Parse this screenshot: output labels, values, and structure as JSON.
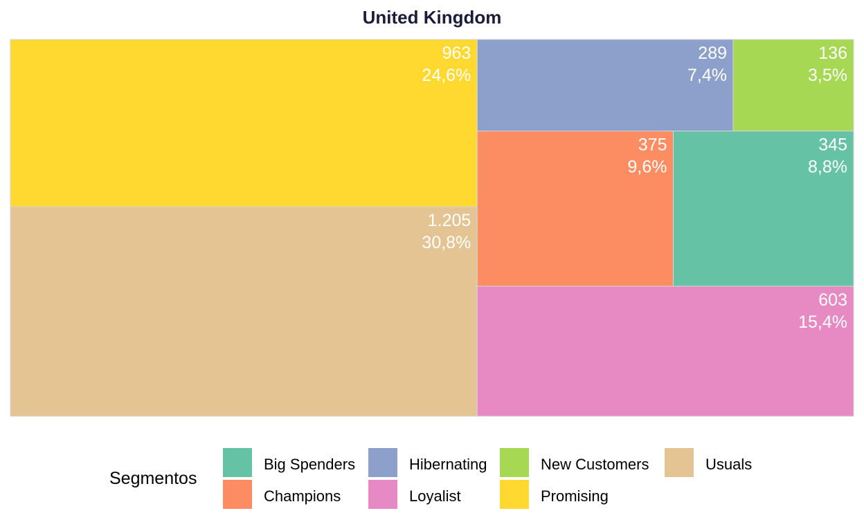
{
  "chart_data": {
    "type": "treemap",
    "title": "United Kingdom",
    "legend_title": "Segmentos",
    "legend_position": "bottom",
    "segments": [
      {
        "name": "Big Spenders",
        "value": 345,
        "value_label": "345",
        "pct_label": "8,8%",
        "color": "#66C2A5"
      },
      {
        "name": "Champions",
        "value": 375,
        "value_label": "375",
        "pct_label": "9,6%",
        "color": "#FC8D62"
      },
      {
        "name": "Hibernating",
        "value": 289,
        "value_label": "289",
        "pct_label": "7,4%",
        "color": "#8DA0CB"
      },
      {
        "name": "Loyalist",
        "value": 603,
        "value_label": "603",
        "pct_label": "15,4%",
        "color": "#E78AC3"
      },
      {
        "name": "New Customers",
        "value": 136,
        "value_label": "136",
        "pct_label": "3,5%",
        "color": "#A6D854"
      },
      {
        "name": "Promising",
        "value": 963,
        "value_label": "963",
        "pct_label": "24,6%",
        "color": "#FFD92F"
      },
      {
        "name": "Usuals",
        "value": 1205,
        "value_label": "1.205",
        "pct_label": "30,8%",
        "color": "#E5C494"
      }
    ]
  }
}
